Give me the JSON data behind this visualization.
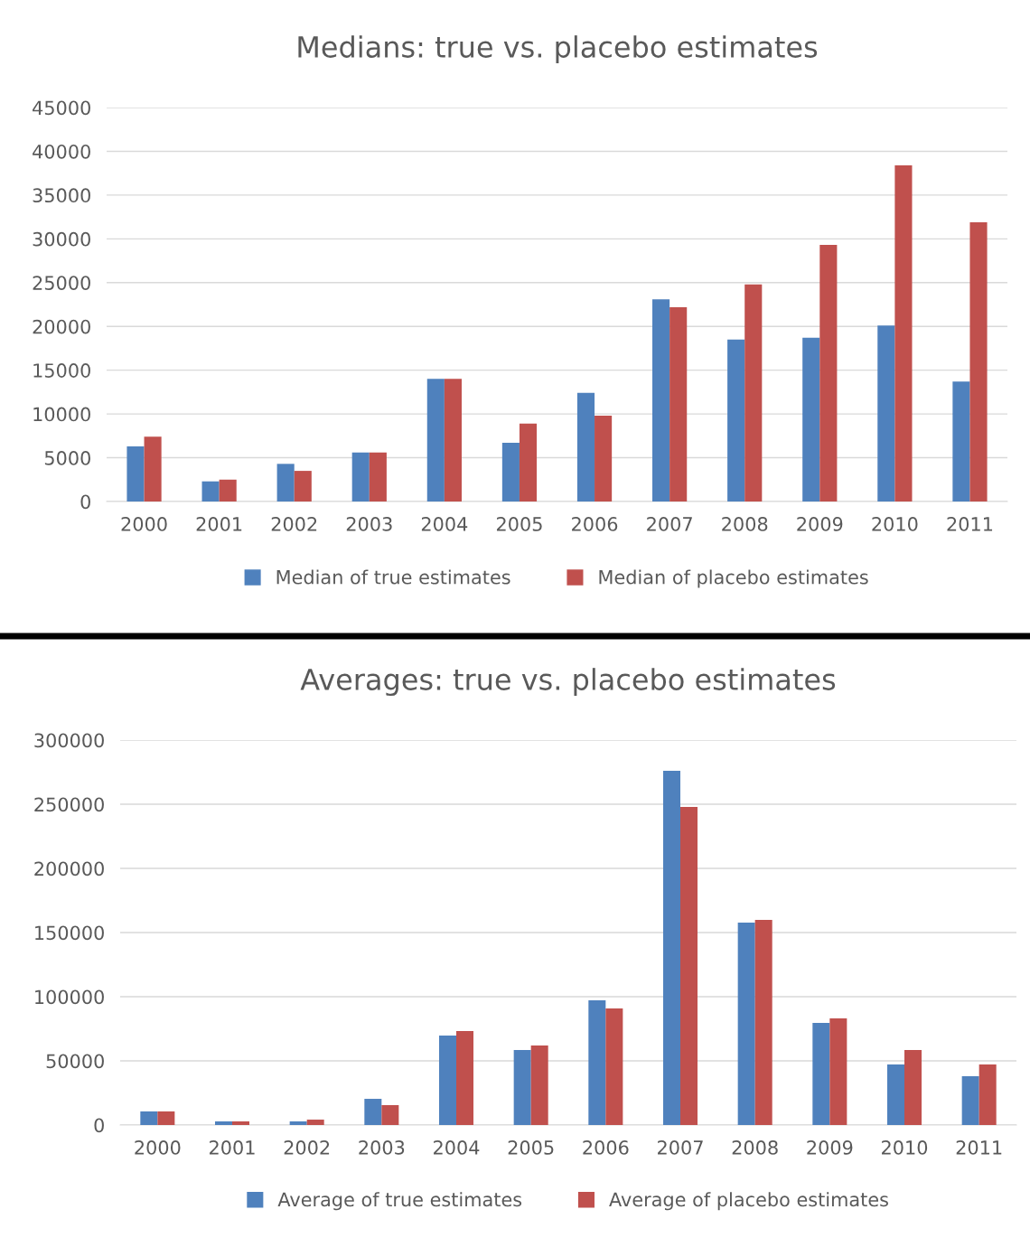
{
  "chart_data": [
    {
      "type": "bar",
      "title": "Medians: true vs. placebo estimates",
      "categories": [
        "2000",
        "2001",
        "2002",
        "2003",
        "2004",
        "2005",
        "2006",
        "2007",
        "2008",
        "2009",
        "2010",
        "2011"
      ],
      "series": [
        {
          "name": "Median of true estimates",
          "color": "#4f81bd",
          "values": [
            6300,
            2300,
            4300,
            5600,
            14000,
            6700,
            12400,
            23100,
            18500,
            18700,
            20100,
            13700
          ]
        },
        {
          "name": "Median of placebo estimates",
          "color": "#c0504d",
          "values": [
            7400,
            2500,
            3500,
            5600,
            14000,
            8900,
            9800,
            22200,
            24800,
            29300,
            38400,
            31900
          ]
        }
      ],
      "ylim": [
        0,
        45000
      ],
      "yticks": [
        0,
        5000,
        10000,
        15000,
        20000,
        25000,
        30000,
        35000,
        40000,
        45000
      ],
      "grid": "y",
      "legend": "bottom"
    },
    {
      "type": "bar",
      "title": "Averages: true vs. placebo estimates",
      "categories": [
        "2000",
        "2001",
        "2002",
        "2003",
        "2004",
        "2005",
        "2006",
        "2007",
        "2008",
        "2009",
        "2010",
        "2011"
      ],
      "series": [
        {
          "name": "Average of true estimates",
          "color": "#4f81bd",
          "values": [
            10600,
            2800,
            2800,
            20400,
            69700,
            58500,
            97200,
            276000,
            157700,
            79600,
            47200,
            38000
          ]
        },
        {
          "name": "Average of placebo estimates",
          "color": "#c0504d",
          "values": [
            10600,
            2800,
            4200,
            15500,
            73200,
            62000,
            90800,
            247900,
            159900,
            83100,
            58500,
            47200
          ]
        }
      ],
      "ylim": [
        0,
        300000
      ],
      "yticks": [
        0,
        50000,
        100000,
        150000,
        200000,
        250000,
        300000
      ],
      "grid": "y",
      "legend": "bottom"
    }
  ]
}
